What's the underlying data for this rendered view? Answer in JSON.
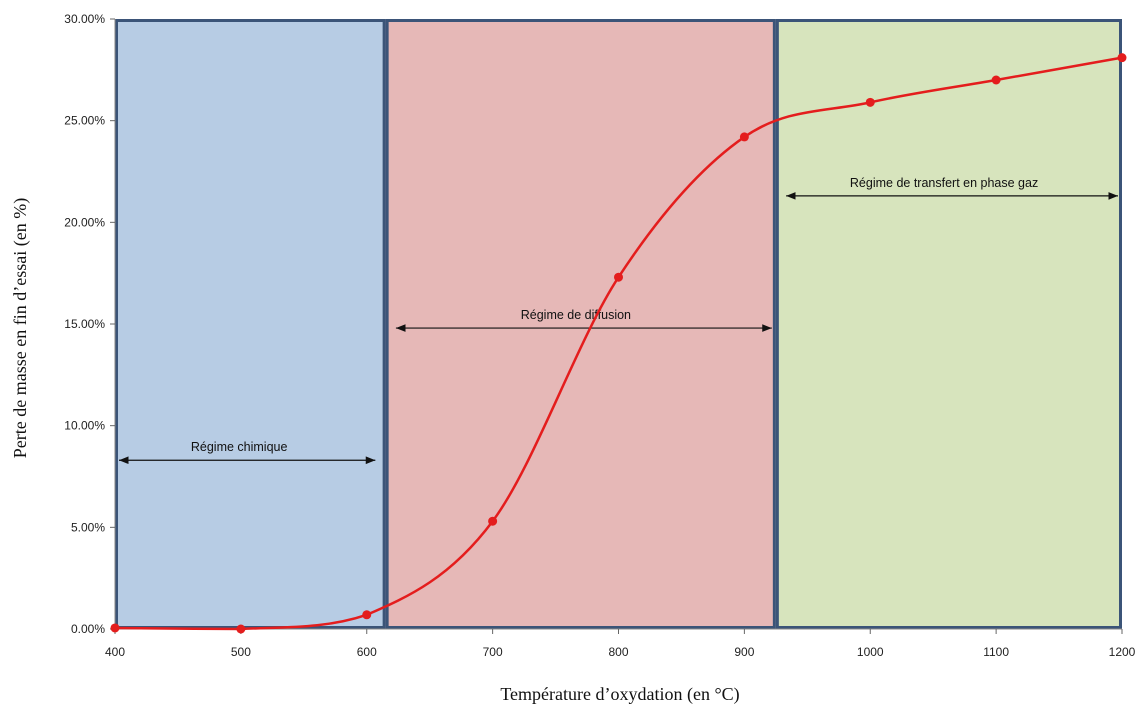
{
  "chart_data": {
    "type": "line",
    "title": "",
    "xlabel": "Température d’oxydation (en °C)",
    "ylabel": "Perte de masse en fin d’essai (en %)",
    "xlim": [
      400,
      1200
    ],
    "ylim": [
      0,
      30
    ],
    "x_ticks": [
      "400",
      "500",
      "600",
      "700",
      "800",
      "900",
      "1000",
      "1100",
      "1200"
    ],
    "y_ticks": [
      "0.00%",
      "5.00%",
      "10.00%",
      "15.00%",
      "20.00%",
      "25.00%",
      "30.00%"
    ],
    "grid": false,
    "legend": "none",
    "series": [
      {
        "color": "#e41d1d",
        "x": [
          400,
          500,
          600,
          700,
          800,
          900,
          1000,
          1100,
          1200
        ],
        "y": [
          0.05,
          0.0,
          0.7,
          5.3,
          17.3,
          24.2,
          25.9,
          27.0,
          28.1
        ]
      }
    ],
    "regions": [
      {
        "x_from": 400,
        "x_to": 615,
        "color": "#b7cce4"
      },
      {
        "x_from": 615,
        "x_to": 925,
        "color": "#e6b8b7"
      },
      {
        "x_from": 925,
        "x_to": 1200,
        "color": "#d7e4bd"
      }
    ],
    "annotations": [
      {
        "text": "Régime chimique",
        "x_from": 400,
        "x_to": 610,
        "y": 8.3
      },
      {
        "text": "Régime de diffusion",
        "x_from": 620,
        "x_to": 925,
        "y": 14.8
      },
      {
        "text": "Régime de transfert en phase gaz",
        "x_from": 930,
        "x_to": 1200,
        "y": 21.3
      }
    ],
    "border_color": "#3b5478"
  }
}
